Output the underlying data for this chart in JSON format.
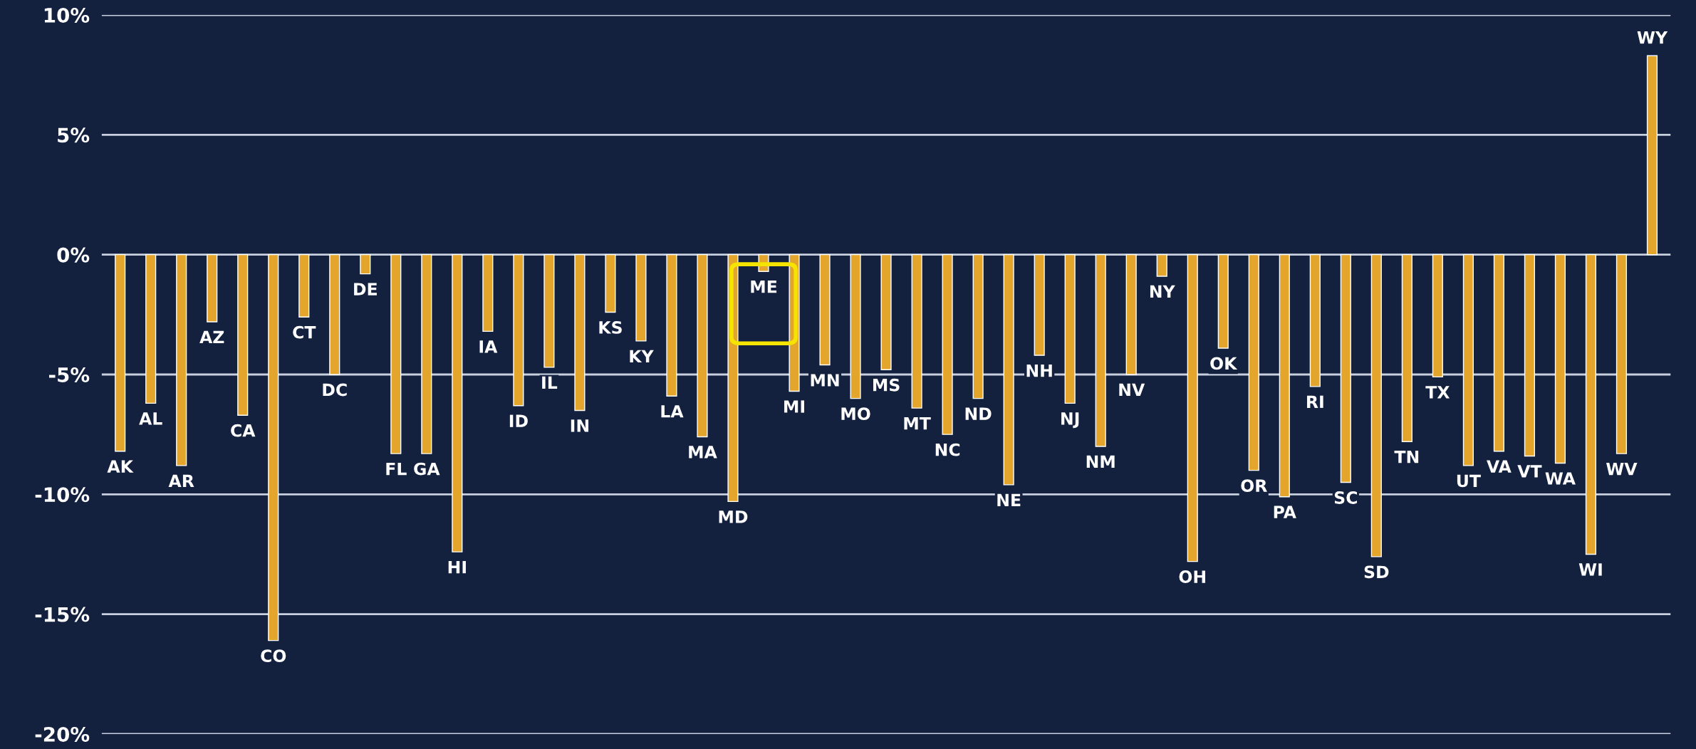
{
  "chart_data": {
    "type": "bar",
    "categories": [
      "AK",
      "AL",
      "AR",
      "AZ",
      "CA",
      "CO",
      "CT",
      "DC",
      "DE",
      "FL",
      "GA",
      "HI",
      "IA",
      "ID",
      "IL",
      "IN",
      "KS",
      "KY",
      "LA",
      "MA",
      "MD",
      "ME",
      "MI",
      "MN",
      "MO",
      "MS",
      "MT",
      "NC",
      "ND",
      "NE",
      "NH",
      "NJ",
      "NM",
      "NV",
      "NY",
      "OH",
      "OK",
      "OR",
      "PA",
      "RI",
      "SC",
      "SD",
      "TN",
      "TX",
      "UT",
      "VA",
      "VT",
      "WA",
      "WI",
      "WV",
      "WY"
    ],
    "values": [
      -8.2,
      -6.2,
      -8.8,
      -2.8,
      -6.7,
      -16.1,
      -2.6,
      -5.0,
      -0.8,
      -8.3,
      -8.3,
      -12.4,
      -3.2,
      -6.3,
      -4.7,
      -6.5,
      -2.4,
      -3.6,
      -5.9,
      -7.6,
      -10.3,
      -0.7,
      -5.7,
      -4.6,
      -6.0,
      -4.8,
      -6.4,
      -7.5,
      -6.0,
      -9.6,
      -4.2,
      -6.2,
      -8.0,
      -5.0,
      -0.9,
      -12.8,
      -3.9,
      -9.0,
      -10.1,
      -5.5,
      -9.5,
      -12.6,
      -7.8,
      -5.1,
      -8.8,
      -8.2,
      -8.4,
      -8.7,
      -12.5,
      -8.3,
      8.3
    ],
    "color": "#e3a52b",
    "ylim": [
      -20,
      10
    ],
    "yticks": [
      {
        "value": -20,
        "label": "-20%"
      },
      {
        "value": -15,
        "label": "-15%"
      },
      {
        "value": -10,
        "label": "-10%"
      },
      {
        "value": -5,
        "label": "-5%"
      },
      {
        "value": 0,
        "label": "0%"
      },
      {
        "value": 5,
        "label": "5%"
      },
      {
        "value": 10,
        "label": "10%"
      }
    ],
    "grid": "y"
  }
}
